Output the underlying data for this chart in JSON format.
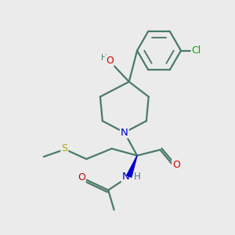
{
  "bg_color": "#ebebeb",
  "bond_color": "#4a7a6a",
  "bond_width": 1.6,
  "atom_colors": {
    "N": "#0000cc",
    "O": "#cc0000",
    "S": "#aaaa00",
    "Cl": "#00aa00",
    "H_label": "#4a7a6a",
    "C": "#4a7a6a"
  },
  "font_size": 8.5,
  "fig_size": [
    3.0,
    3.0
  ],
  "dpi": 100
}
